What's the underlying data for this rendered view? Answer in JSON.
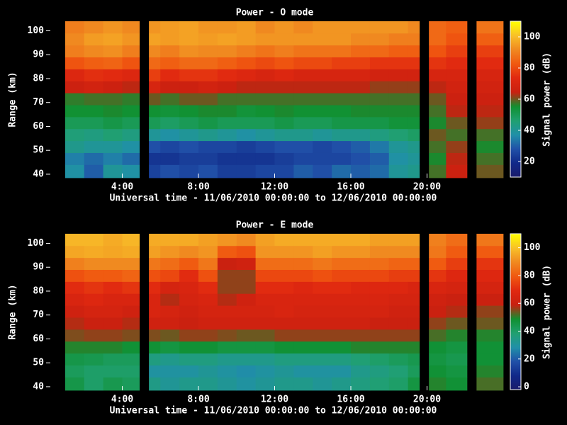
{
  "chart_data": [
    {
      "type": "heatmap",
      "title": "Power - O mode",
      "xlabel": "Universal time - 11/06/2010 00:00:00 to 12/06/2010 00:00:00",
      "ylabel": "Range (km)",
      "colorbar_label": "Signal power (dB)",
      "xlim": [
        0,
        24
      ],
      "ylim": [
        38.5,
        104
      ],
      "xticks": [
        {
          "value": 4,
          "label": "4:00"
        },
        {
          "value": 8,
          "label": "8:00"
        },
        {
          "value": 12,
          "label": "12:00"
        },
        {
          "value": 16,
          "label": "16:00"
        },
        {
          "value": 20,
          "label": "20:00"
        }
      ],
      "yticks": [
        40,
        50,
        60,
        70,
        80,
        90,
        100
      ],
      "clim": [
        10,
        110
      ],
      "cticks": [
        20,
        40,
        60,
        80,
        100
      ],
      "colormap": [
        "#1a1a6a",
        "#102888",
        "#2050a8",
        "#2090a8",
        "#20a070",
        "#109030",
        "#c82010",
        "#e02810",
        "#f05810",
        "#f08820",
        "#f8c028",
        "#ffff00"
      ],
      "x_edges": [
        0,
        1,
        2,
        3,
        4,
        4.9,
        5.4,
        6,
        7,
        8,
        9,
        10,
        11,
        12,
        13,
        14,
        15,
        16,
        17,
        18,
        19,
        19.6,
        20.1,
        21,
        22.1,
        22.6,
        24
      ],
      "y_edges": [
        38.5,
        44,
        49,
        54,
        59,
        64,
        69,
        74,
        79,
        84,
        89,
        94,
        99,
        104
      ],
      "z": [
        null,
        [
          38,
          35,
          42,
          45,
          50,
          55,
          57,
          66,
          72,
          82,
          90,
          92,
          90
        ],
        [
          30,
          32,
          40,
          44,
          50,
          55,
          58,
          68,
          75,
          84,
          92,
          95,
          92
        ],
        [
          40,
          35,
          40,
          46,
          52,
          56,
          58,
          66,
          74,
          85,
          93,
          96,
          94
        ],
        [
          38,
          32,
          38,
          44,
          50,
          55,
          57,
          64,
          72,
          82,
          90,
          94,
          92
        ],
        null,
        [
          25,
          22,
          28,
          40,
          50,
          55,
          60,
          70,
          78,
          86,
          92,
          96,
          94
        ],
        [
          28,
          22,
          26,
          38,
          48,
          54,
          58,
          66,
          74,
          84,
          90,
          95,
          95
        ],
        [
          26,
          24,
          28,
          40,
          50,
          55,
          60,
          66,
          76,
          86,
          93,
          96,
          96
        ],
        [
          28,
          24,
          26,
          42,
          52,
          56,
          60,
          68,
          76,
          86,
          92,
          95,
          94
        ],
        [
          24,
          22,
          26,
          40,
          50,
          56,
          58,
          66,
          74,
          84,
          92,
          96,
          94
        ],
        [
          24,
          22,
          24,
          38,
          50,
          54,
          58,
          64,
          72,
          82,
          90,
          95,
          95
        ],
        [
          26,
          22,
          26,
          40,
          50,
          55,
          58,
          64,
          70,
          80,
          88,
          94,
          92
        ],
        [
          26,
          24,
          28,
          42,
          52,
          56,
          58,
          64,
          72,
          82,
          90,
          94,
          94
        ],
        [
          30,
          26,
          28,
          42,
          50,
          55,
          58,
          64,
          70,
          80,
          88,
          94,
          92
        ],
        [
          28,
          26,
          26,
          40,
          50,
          55,
          58,
          64,
          70,
          80,
          88,
          94,
          94
        ],
        [
          32,
          26,
          28,
          42,
          52,
          55,
          58,
          64,
          70,
          78,
          88,
          94,
          94
        ],
        [
          30,
          28,
          30,
          42,
          52,
          56,
          58,
          64,
          70,
          78,
          86,
          92,
          94
        ],
        [
          32,
          30,
          34,
          44,
          52,
          56,
          58,
          62,
          68,
          76,
          86,
          92,
          94
        ],
        [
          40,
          38,
          40,
          46,
          54,
          56,
          58,
          62,
          68,
          76,
          84,
          90,
          94
        ],
        [
          42,
          40,
          42,
          48,
          54,
          56,
          58,
          62,
          68,
          76,
          84,
          90,
          92
        ],
        null,
        [
          58,
          56,
          58,
          60,
          56,
          58,
          60,
          64,
          70,
          76,
          82,
          86,
          86
        ],
        [
          66,
          64,
          62,
          58,
          60,
          64,
          66,
          68,
          70,
          74,
          78,
          82,
          84
        ],
        null,
        [
          60,
          58,
          56,
          58,
          62,
          64,
          66,
          68,
          70,
          74,
          78,
          84,
          88
        ]
      ]
    },
    {
      "type": "heatmap",
      "title": "Power - E mode",
      "xlabel": "Universal time - 11/06/2010 00:00:00 to 12/06/2010 00:00:00",
      "ylabel": "Range (km)",
      "colorbar_label": "Signal power (dB)",
      "xlim": [
        0,
        24
      ],
      "ylim": [
        38.5,
        104
      ],
      "xticks": [
        {
          "value": 4,
          "label": "4:00"
        },
        {
          "value": 8,
          "label": "8:00"
        },
        {
          "value": 12,
          "label": "12:00"
        },
        {
          "value": 16,
          "label": "16:00"
        },
        {
          "value": 20,
          "label": "20:00"
        }
      ],
      "yticks": [
        40,
        50,
        60,
        70,
        80,
        90,
        100
      ],
      "clim": [
        -2,
        110
      ],
      "cticks": [
        0,
        20,
        40,
        60,
        80,
        100
      ],
      "colormap": [
        "#1a1a6a",
        "#102888",
        "#2050a8",
        "#2090a8",
        "#20a070",
        "#109030",
        "#c82010",
        "#e02810",
        "#f05810",
        "#f08820",
        "#f8c028",
        "#ffff00"
      ],
      "x_edges": [
        0,
        1,
        2,
        3,
        4,
        4.9,
        5.4,
        6,
        7,
        8,
        9,
        10,
        11,
        12,
        13,
        14,
        15,
        16,
        17,
        18,
        19,
        19.6,
        20.1,
        21,
        22.1,
        22.6,
        24
      ],
      "y_edges": [
        38.5,
        44,
        49,
        54,
        59,
        64,
        69,
        74,
        79,
        84,
        89,
        94,
        99,
        104
      ],
      "z": [
        null,
        [
          45,
          42,
          45,
          50,
          55,
          58,
          62,
          66,
          70,
          78,
          88,
          95,
          98
        ],
        [
          40,
          40,
          44,
          50,
          56,
          60,
          64,
          68,
          72,
          80,
          90,
          96,
          98
        ],
        [
          44,
          40,
          42,
          50,
          56,
          60,
          64,
          66,
          70,
          80,
          90,
          95,
          96
        ],
        [
          42,
          40,
          42,
          48,
          55,
          58,
          62,
          66,
          72,
          82,
          90,
          96,
          98
        ],
        null,
        [
          35,
          30,
          36,
          48,
          55,
          62,
          66,
          66,
          70,
          78,
          86,
          94,
          96
        ],
        [
          32,
          30,
          34,
          46,
          54,
          62,
          64,
          58,
          64,
          76,
          84,
          92,
          96
        ],
        [
          34,
          30,
          36,
          48,
          56,
          60,
          62,
          64,
          66,
          70,
          80,
          90,
          96
        ],
        [
          34,
          32,
          36,
          48,
          56,
          62,
          64,
          66,
          70,
          78,
          86,
          92,
          94
        ],
        [
          32,
          30,
          34,
          46,
          55,
          62,
          64,
          58,
          56,
          56,
          60,
          80,
          92
        ],
        [
          30,
          28,
          34,
          46,
          54,
          62,
          64,
          62,
          56,
          56,
          62,
          78,
          90
        ],
        [
          32,
          30,
          34,
          46,
          54,
          62,
          64,
          66,
          70,
          76,
          84,
          92,
          94
        ],
        [
          34,
          32,
          36,
          48,
          56,
          62,
          66,
          66,
          70,
          76,
          84,
          92,
          96
        ],
        [
          34,
          30,
          36,
          48,
          56,
          62,
          64,
          66,
          68,
          76,
          84,
          92,
          96
        ],
        [
          32,
          30,
          36,
          48,
          56,
          62,
          64,
          66,
          70,
          78,
          86,
          94,
          96
        ],
        [
          34,
          30,
          36,
          48,
          56,
          62,
          64,
          66,
          70,
          76,
          84,
          92,
          96
        ],
        [
          36,
          34,
          38,
          50,
          56,
          62,
          64,
          66,
          68,
          76,
          84,
          92,
          96
        ],
        [
          38,
          36,
          40,
          50,
          56,
          60,
          64,
          66,
          68,
          76,
          84,
          90,
          94
        ],
        [
          40,
          38,
          42,
          50,
          56,
          60,
          62,
          64,
          68,
          74,
          82,
          90,
          94
        ],
        [
          46,
          42,
          44,
          50,
          56,
          60,
          62,
          64,
          66,
          74,
          82,
          90,
          94
        ],
        null,
        [
          50,
          48,
          46,
          48,
          52,
          56,
          60,
          62,
          66,
          72,
          80,
          86,
          88
        ],
        [
          48,
          46,
          44,
          46,
          50,
          54,
          58,
          60,
          64,
          68,
          74,
          80,
          84
        ],
        null,
        [
          52,
          50,
          48,
          48,
          50,
          54,
          56,
          60,
          64,
          68,
          72,
          80,
          86
        ]
      ]
    }
  ]
}
